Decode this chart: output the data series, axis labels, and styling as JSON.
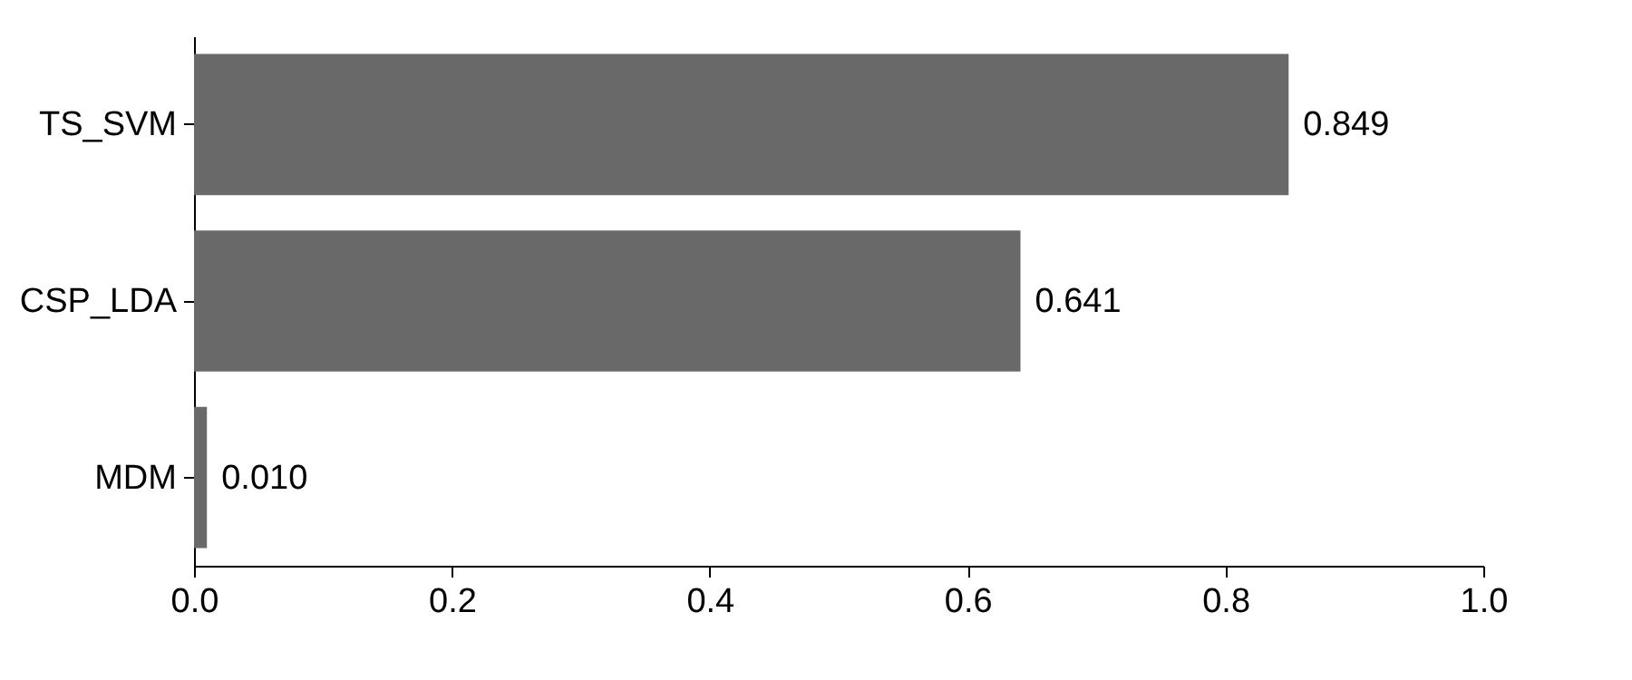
{
  "chart_data": {
    "type": "bar",
    "orientation": "horizontal",
    "categories": [
      "TS_SVM",
      "CSP_LDA",
      "MDM"
    ],
    "values": [
      0.849,
      0.641,
      0.01
    ],
    "value_labels": [
      "0.849",
      "0.641",
      "0.010"
    ],
    "color": "#696969",
    "xlim": [
      0,
      1
    ],
    "xticks": [
      {
        "value": 0,
        "label": "0.0"
      },
      0.2,
      0.4,
      0.6,
      0.8,
      {
        "value": 1,
        "label": "1.0"
      }
    ],
    "grid": false
  }
}
